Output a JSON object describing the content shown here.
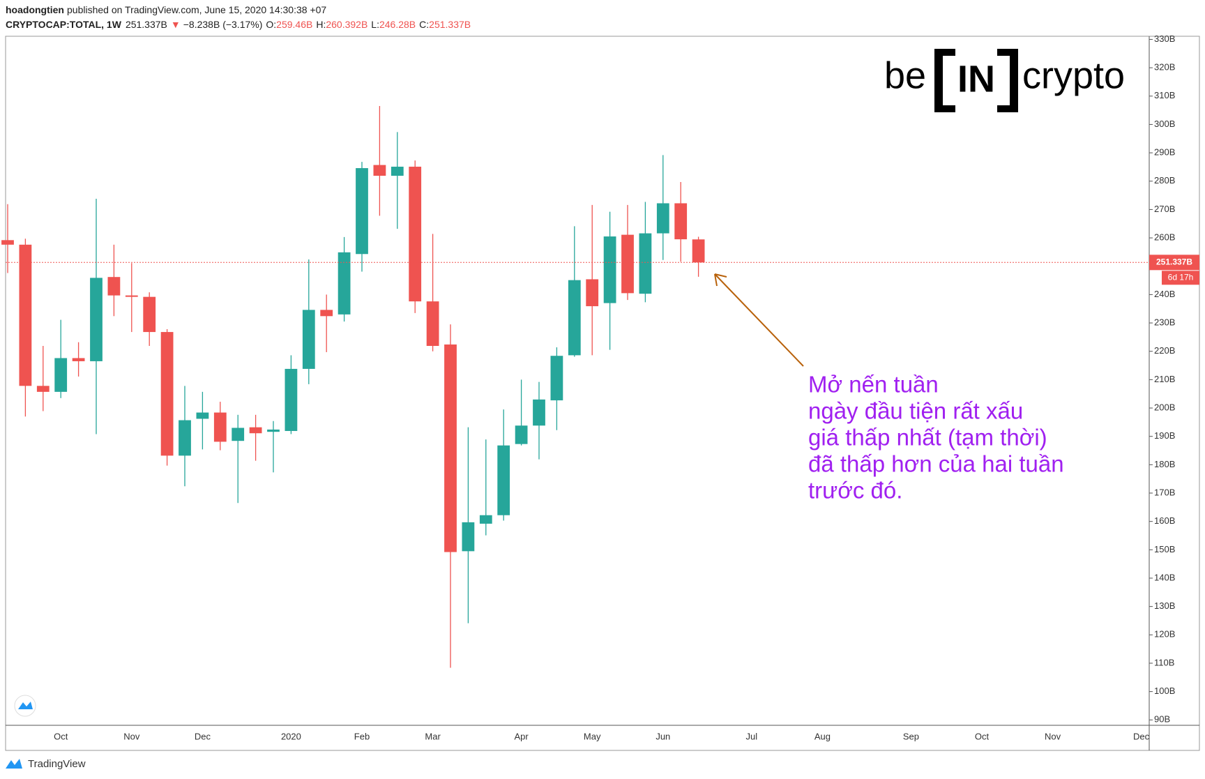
{
  "header": {
    "author": "hoadongtien",
    "published": "published on TradingView.com, June 15, 2020 14:30:38 +07"
  },
  "ohlc_header": {
    "symbol": "CRYPTOCAP:TOTAL, 1W",
    "last": "251.337B",
    "arrow": "▼",
    "change": "−8.238B (−3.17%)",
    "o_label": "O:",
    "o": "259.46B",
    "h_label": "H:",
    "h": "260.392B",
    "l_label": "L:",
    "l": "246.28B",
    "c_label": "C:",
    "c": "251.337B"
  },
  "logo": {
    "left": "be",
    "middle": "IN",
    "right": "crypto"
  },
  "footer": {
    "brand": "TradingView"
  },
  "chart_data": {
    "type": "candlestick",
    "categories": [
      null,
      null,
      null,
      "Oct",
      null,
      null,
      null,
      "Nov",
      null,
      null,
      null,
      "Dec",
      null,
      null,
      null,
      null,
      "2020",
      null,
      null,
      null,
      "Feb",
      null,
      null,
      null,
      "Mar",
      null,
      null,
      null,
      null,
      "Apr",
      null,
      null,
      null,
      "May",
      null,
      null,
      null,
      "Jun",
      null,
      null,
      null,
      null,
      "Jul",
      null,
      null,
      null,
      "Aug",
      null,
      null,
      null,
      null,
      "Sep",
      null,
      null,
      null,
      "Oct",
      null,
      null,
      null,
      "Nov",
      null,
      null,
      null,
      null,
      "Dec"
    ],
    "open": [
      259.2,
      257.6,
      207.8,
      205.7,
      217.6,
      216.5,
      246.2,
      239.7,
      239.2,
      226.8,
      183.2,
      196.2,
      198.4,
      188.4,
      193.2,
      191.6,
      191.9,
      213.8,
      234.6,
      233.0,
      254.3,
      285.7,
      281.9,
      285.1,
      237.6,
      222.4,
      149.5,
      159.2,
      162.2,
      187.3,
      193.8,
      202.7,
      218.6,
      245.4,
      237.0,
      261.1,
      240.3,
      261.6,
      272.2,
      259.46,
      null,
      null,
      null,
      null,
      null,
      null,
      null,
      null,
      null,
      null,
      null,
      null,
      null,
      null,
      null,
      null,
      null,
      null,
      null,
      null,
      null,
      null,
      null,
      null,
      null
    ],
    "high": [
      271.9,
      259.7,
      221.9,
      231.1,
      223.2,
      273.8,
      257.6,
      251.1,
      240.8,
      227.8,
      207.8,
      205.7,
      202.2,
      197.6,
      197.6,
      195.4,
      218.6,
      252.4,
      240.0,
      260.3,
      286.8,
      306.5,
      297.3,
      287.3,
      261.4,
      229.5,
      193.2,
      188.9,
      199.5,
      210.0,
      209.2,
      221.4,
      264.1,
      271.6,
      269.2,
      271.6,
      272.7,
      289.2,
      279.7,
      260.392,
      null,
      null,
      null,
      null,
      null,
      null,
      null,
      null,
      null,
      null,
      null,
      null,
      null,
      null,
      null,
      null,
      null,
      null,
      null,
      null,
      null,
      null,
      null,
      null,
      null
    ],
    "low": [
      247.6,
      197.0,
      198.9,
      203.5,
      211.1,
      190.8,
      232.4,
      226.8,
      221.9,
      179.7,
      172.4,
      185.4,
      185.1,
      166.5,
      181.4,
      177.3,
      190.8,
      208.4,
      219.7,
      230.5,
      248.1,
      267.8,
      263.2,
      233.5,
      220.0,
      108.4,
      124.1,
      155.1,
      160.3,
      186.8,
      181.9,
      192.2,
      218.1,
      218.6,
      220.5,
      238.1,
      237.3,
      252.2,
      251.6,
      246.28,
      null,
      null,
      null,
      null,
      null,
      null,
      null,
      null,
      null,
      null,
      null,
      null,
      null,
      null,
      null,
      null,
      null,
      null,
      null,
      null,
      null,
      null,
      null,
      null,
      null
    ],
    "close": [
      257.6,
      207.8,
      205.7,
      217.6,
      216.5,
      245.9,
      239.7,
      239.2,
      226.8,
      183.2,
      195.7,
      198.4,
      188.1,
      193.0,
      191.1,
      192.4,
      213.8,
      234.6,
      232.4,
      254.9,
      284.6,
      281.9,
      285.1,
      237.6,
      221.9,
      149.2,
      159.7,
      162.2,
      186.8,
      193.8,
      203.0,
      218.4,
      245.1,
      235.9,
      260.5,
      240.5,
      261.6,
      272.2,
      259.5,
      251.337,
      null,
      null,
      null,
      null,
      null,
      null,
      null,
      null,
      null,
      null,
      null,
      null,
      null,
      null,
      null,
      null,
      null,
      null,
      null,
      null,
      null,
      null,
      null,
      null,
      null
    ],
    "up_color": "#26a69a",
    "down_color": "#ef5350",
    "ylim": [
      88.1,
      331.1
    ],
    "yticks": [
      {
        "value": 90,
        "label": "90B"
      },
      {
        "value": 100,
        "label": "100B"
      },
      {
        "value": 110,
        "label": "110B"
      },
      {
        "value": 120,
        "label": "120B"
      },
      {
        "value": 130,
        "label": "130B"
      },
      {
        "value": 140,
        "label": "140B"
      },
      {
        "value": 150,
        "label": "150B"
      },
      {
        "value": 160,
        "label": "160B"
      },
      {
        "value": 170,
        "label": "170B"
      },
      {
        "value": 180,
        "label": "180B"
      },
      {
        "value": 190,
        "label": "190B"
      },
      {
        "value": 200,
        "label": "200B"
      },
      {
        "value": 210,
        "label": "210B"
      },
      {
        "value": 220,
        "label": "220B"
      },
      {
        "value": 230,
        "label": "230B"
      },
      {
        "value": 240,
        "label": "240B"
      },
      {
        "value": 250,
        "label": "250B"
      },
      {
        "value": 260,
        "label": "260B"
      },
      {
        "value": 270,
        "label": "270B"
      },
      {
        "value": 280,
        "label": "280B"
      },
      {
        "value": 290,
        "label": "290B"
      },
      {
        "value": 300,
        "label": "300B"
      },
      {
        "value": 310,
        "label": "310B"
      },
      {
        "value": 320,
        "label": "320B"
      },
      {
        "value": 330,
        "label": "330B"
      }
    ],
    "grid": false,
    "last_price": {
      "value": 251.337,
      "label": "251.337B"
    },
    "countdown": "6d 17h",
    "annotation": {
      "color": "#a020f0",
      "lines": [
        "Mở nến tuần",
        "ngày đầu tiện rất xấu",
        "giá thấp nhất (tạm thời)",
        "đã thấp hơn của hai tuần",
        "trước đó."
      ]
    }
  }
}
